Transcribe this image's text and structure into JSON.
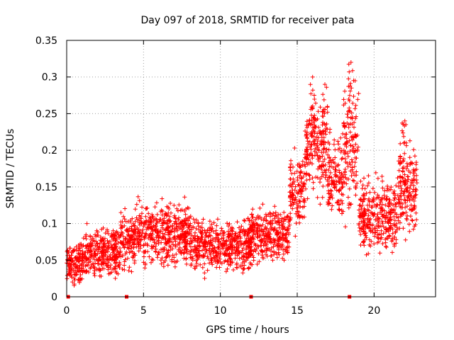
{
  "chart_data": {
    "type": "scatter",
    "title": "Day 097 of 2018, SRMTID for receiver pata",
    "xlabel": "GPS time / hours",
    "ylabel": "SRMTID / TECUs",
    "xlim": [
      0,
      24
    ],
    "ylim": [
      0,
      0.35
    ],
    "x_ticks": [
      0,
      5,
      10,
      15,
      20
    ],
    "x_tick_labels": [
      "0",
      "5",
      "10",
      "15",
      "20"
    ],
    "y_ticks": [
      0,
      0.05,
      0.1,
      0.15,
      0.2,
      0.25,
      0.3,
      0.35
    ],
    "y_tick_labels": [
      "0",
      "0.05",
      "0.1",
      "0.15",
      "0.2",
      "0.25",
      "0.3",
      "0.35"
    ],
    "grid": true,
    "marker": "+",
    "color": "#ff0000",
    "zero_markers_x": [
      0.1,
      3.9,
      12.0,
      18.4
    ],
    "series": [
      {
        "name": "SRMTID",
        "summary": [
          {
            "x": [
              0.0,
              1.0
            ],
            "y_center": 0.045,
            "y_spread": 0.025
          },
          {
            "x": [
              1.0,
              3.5
            ],
            "y_center": 0.06,
            "y_spread": 0.03
          },
          {
            "x": [
              3.5,
              4.5
            ],
            "y_center": 0.08,
            "y_spread": 0.035
          },
          {
            "x": [
              4.5,
              8.0
            ],
            "y_center": 0.085,
            "y_spread": 0.035
          },
          {
            "x": [
              8.0,
              12.0
            ],
            "y_center": 0.07,
            "y_spread": 0.03
          },
          {
            "x": [
              12.0,
              14.5
            ],
            "y_center": 0.085,
            "y_spread": 0.03
          },
          {
            "x": [
              14.5,
              15.5
            ],
            "y_center": 0.14,
            "y_spread": 0.045
          },
          {
            "x": [
              15.5,
              17.0
            ],
            "y_center": 0.2,
            "y_spread": 0.06
          },
          {
            "x": [
              17.0,
              18.0
            ],
            "y_center": 0.16,
            "y_spread": 0.05
          },
          {
            "x": [
              18.0,
              19.0
            ],
            "y_center": 0.2,
            "y_spread": 0.07
          },
          {
            "x": [
              19.0,
              21.5
            ],
            "y_center": 0.11,
            "y_spread": 0.04
          },
          {
            "x": [
              21.5,
              22.8
            ],
            "y_center": 0.15,
            "y_spread": 0.05
          }
        ],
        "peaks": [
          {
            "x": 16.0,
            "y": 0.3
          },
          {
            "x": 16.8,
            "y": 0.29
          },
          {
            "x": 18.5,
            "y": 0.32
          },
          {
            "x": 22.0,
            "y": 0.24
          }
        ]
      }
    ]
  }
}
